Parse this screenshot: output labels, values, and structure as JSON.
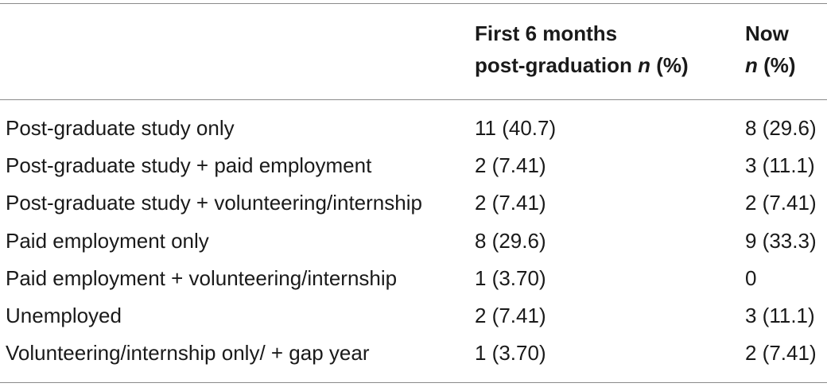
{
  "table": {
    "headers": {
      "col1_line1": "First 6 months",
      "col1_line2_prefix": "post-graduation ",
      "col1_line2_italic": "n",
      "col1_line2_suffix": " (%)",
      "col2_line1": "Now",
      "col2_line2_italic": "n",
      "col2_line2_suffix": " (%)"
    },
    "rows": [
      {
        "label": "Post-graduate study only",
        "first6": "11 (40.7)",
        "now": "8 (29.6)"
      },
      {
        "label": "Post-graduate study + paid employment",
        "first6": "2 (7.41)",
        "now": "3 (11.1)"
      },
      {
        "label": "Post-graduate study + volunteering/internship",
        "first6": "2 (7.41)",
        "now": "2 (7.41)"
      },
      {
        "label": "Paid employment only",
        "first6": "8 (29.6)",
        "now": "9 (33.3)"
      },
      {
        "label": "Paid employment + volunteering/internship",
        "first6": "1 (3.70)",
        "now": "0"
      },
      {
        "label": "Unemployed",
        "first6": "2 (7.41)",
        "now": "3 (11.1)"
      },
      {
        "label": "Volunteering/internship only/ + gap year",
        "first6": "1 (3.70)",
        "now": "2 (7.41)"
      }
    ]
  }
}
